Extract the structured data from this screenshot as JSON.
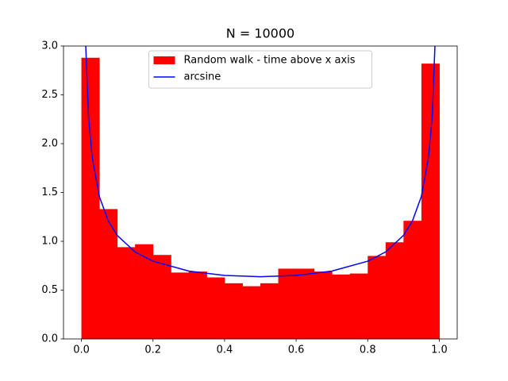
{
  "chart_data": {
    "type": "histogram",
    "title": "N = 10000",
    "xlim": [
      -0.05,
      1.05
    ],
    "ylim": [
      0,
      3
    ],
    "xticks": [
      {
        "value": 0,
        "label": "0.0"
      },
      0.2,
      0.4,
      0.6,
      0.8,
      {
        "value": 1,
        "label": "1.0"
      }
    ],
    "yticks": [
      {
        "value": 0,
        "label": "0.0"
      },
      0.5,
      {
        "value": 1,
        "label": "1.0"
      },
      1.5,
      {
        "value": 2,
        "label": "2.0"
      },
      2.5,
      {
        "value": 3,
        "label": "3.0"
      }
    ],
    "legend": "upper center",
    "series": [
      {
        "name": "Random walk - time above x axis",
        "type": "histogram",
        "color": "#ff0000",
        "bins": [
          0,
          0.05,
          0.1,
          0.15,
          0.2,
          0.25,
          0.3,
          0.35,
          0.4,
          0.45,
          0.5,
          0.55,
          0.6,
          0.65,
          0.7,
          0.75,
          0.8,
          0.85,
          0.9,
          0.95,
          1
        ],
        "values": [
          2.88,
          1.33,
          0.94,
          0.97,
          0.86,
          0.68,
          0.69,
          0.63,
          0.57,
          0.54,
          0.57,
          0.72,
          0.72,
          0.69,
          0.66,
          0.67,
          0.85,
          0.99,
          1.21,
          2.82
        ]
      },
      {
        "name": "arcsine",
        "type": "line",
        "color": "#0000ff",
        "x": [
          0.01,
          0.02,
          0.03,
          0.05,
          0.075,
          0.1,
          0.15,
          0.2,
          0.3,
          0.4,
          0.5,
          0.6,
          0.7,
          0.8,
          0.85,
          0.9,
          0.925,
          0.95,
          0.97,
          0.98,
          0.99
        ],
        "values": [
          3.199,
          2.274,
          1.866,
          1.461,
          1.209,
          1.061,
          0.891,
          0.796,
          0.695,
          0.65,
          0.637,
          0.65,
          0.695,
          0.796,
          0.891,
          1.061,
          1.209,
          1.461,
          1.866,
          2.274,
          3.199
        ]
      }
    ]
  }
}
